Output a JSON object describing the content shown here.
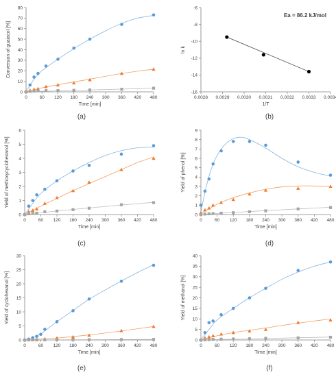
{
  "colors": {
    "blue": "#5B9BD5",
    "orange": "#ED7D31",
    "gray": "#A5A5A5",
    "black": "#000000"
  },
  "chart_data": [
    {
      "id": "a",
      "type": "scatter",
      "panel_label": "(a)",
      "xlabel": "Time [min]",
      "ylabel": "Conversion of guaiacol [%]",
      "xlim": [
        0,
        480
      ],
      "ylim": [
        0,
        80
      ],
      "xticks": [
        0,
        60,
        120,
        180,
        240,
        300,
        360,
        420,
        480
      ],
      "yticks": [
        0,
        10,
        20,
        30,
        40,
        50,
        60,
        70,
        80
      ],
      "ytick_decimals": 0,
      "xtick_decimals": 0,
      "grid": false,
      "series": [
        {
          "color": "blue",
          "marker": "circle",
          "x": [
            0,
            15,
            30,
            45,
            75,
            120,
            180,
            240,
            360,
            480
          ],
          "y": [
            0,
            6.5,
            14,
            17.5,
            24.5,
            31,
            41.5,
            50,
            64,
            73
          ],
          "trend": [
            [
              0,
              0
            ],
            [
              30,
              12
            ],
            [
              60,
              20
            ],
            [
              120,
              31
            ],
            [
              180,
              41
            ],
            [
              240,
              50
            ],
            [
              300,
              58
            ],
            [
              360,
              65
            ],
            [
              420,
              70
            ],
            [
              480,
              72.5
            ]
          ]
        },
        {
          "color": "orange",
          "marker": "triangle",
          "x": [
            0,
            15,
            30,
            45,
            75,
            120,
            180,
            240,
            360,
            480
          ],
          "y": [
            0,
            1.5,
            2.5,
            3,
            5,
            6.5,
            8.5,
            11.5,
            17.5,
            21.5
          ],
          "trend": [
            [
              0,
              0
            ],
            [
              60,
              3.8
            ],
            [
              120,
              6.8
            ],
            [
              180,
              9.4
            ],
            [
              240,
              12
            ],
            [
              300,
              14.8
            ],
            [
              360,
              17.4
            ],
            [
              420,
              19.6
            ],
            [
              480,
              21.5
            ]
          ]
        },
        {
          "color": "gray",
          "marker": "square",
          "x": [
            0,
            15,
            30,
            45,
            75,
            120,
            180,
            240,
            360,
            480
          ],
          "y": [
            0,
            0.5,
            0.8,
            1,
            1.2,
            1.2,
            1.5,
            1.8,
            2.5,
            3.5
          ],
          "trend": [
            [
              0,
              0
            ],
            [
              120,
              1
            ],
            [
              240,
              1.8
            ],
            [
              360,
              2.6
            ],
            [
              480,
              3.5
            ]
          ]
        }
      ]
    },
    {
      "id": "b",
      "type": "scatter",
      "panel_label": "(b)",
      "xlabel": "1/T",
      "ylabel": "ln k",
      "annotation": "Ea = 86.2 kJ/mol",
      "xlim": [
        0.0028,
        0.0034
      ],
      "ylim": [
        -16,
        -6
      ],
      "xticks": [
        0.0028,
        0.0029,
        0.003,
        0.0031,
        0.0032,
        0.0033,
        0.0034
      ],
      "yticks": [
        -16,
        -14,
        -12,
        -10,
        -8,
        -6
      ],
      "ytick_decimals": 0,
      "xtick_decimals": 4,
      "grid": false,
      "series": [
        {
          "color": "black",
          "marker": "circle",
          "x": [
            0.00292,
            0.00309,
            0.0033
          ],
          "y": [
            -9.5,
            -11.6,
            -13.6
          ],
          "trend": [
            [
              0.00292,
              -9.5
            ],
            [
              0.0033,
              -13.6
            ]
          ]
        }
      ]
    },
    {
      "id": "c",
      "type": "scatter",
      "panel_label": "(c)",
      "xlabel": "Time [min]",
      "ylabel": "Yield of methoxycyclohexanol [%]",
      "xlim": [
        0,
        480
      ],
      "ylim": [
        0,
        6
      ],
      "xticks": [
        0,
        60,
        120,
        180,
        240,
        300,
        360,
        420,
        480
      ],
      "yticks": [
        0,
        1,
        2,
        3,
        4,
        5,
        6
      ],
      "ytick_decimals": 0,
      "xtick_decimals": 0,
      "grid": false,
      "series": [
        {
          "color": "blue",
          "marker": "circle",
          "x": [
            0,
            15,
            30,
            45,
            75,
            120,
            180,
            240,
            360,
            480
          ],
          "y": [
            0,
            0.6,
            1,
            1.4,
            1.8,
            2.4,
            3.1,
            3.5,
            4.3,
            4.9
          ],
          "trend": [
            [
              0,
              0
            ],
            [
              30,
              0.8
            ],
            [
              60,
              1.5
            ],
            [
              120,
              2.4
            ],
            [
              180,
              3.1
            ],
            [
              240,
              3.7
            ],
            [
              300,
              4.2
            ],
            [
              360,
              4.55
            ],
            [
              420,
              4.75
            ],
            [
              480,
              4.8
            ]
          ]
        },
        {
          "color": "orange",
          "marker": "triangle",
          "x": [
            0,
            15,
            30,
            45,
            75,
            120,
            180,
            240,
            360,
            480
          ],
          "y": [
            0,
            0.2,
            0.3,
            0.4,
            0.8,
            1.2,
            1.7,
            2.3,
            3.2,
            4.0
          ],
          "trend": [
            [
              0,
              0
            ],
            [
              60,
              0.6
            ],
            [
              120,
              1.15
            ],
            [
              180,
              1.7
            ],
            [
              240,
              2.2
            ],
            [
              300,
              2.7
            ],
            [
              360,
              3.2
            ],
            [
              420,
              3.7
            ],
            [
              480,
              4.1
            ]
          ]
        },
        {
          "color": "gray",
          "marker": "square",
          "x": [
            0,
            15,
            30,
            45,
            75,
            120,
            180,
            240,
            360,
            480
          ],
          "y": [
            0,
            0.05,
            0.08,
            0.1,
            0.2,
            0.25,
            0.35,
            0.45,
            0.7,
            0.85
          ],
          "trend": [
            [
              0,
              0
            ],
            [
              120,
              0.25
            ],
            [
              240,
              0.47
            ],
            [
              360,
              0.68
            ],
            [
              480,
              0.87
            ]
          ]
        }
      ]
    },
    {
      "id": "d",
      "type": "scatter",
      "panel_label": "(d)",
      "xlabel": "Time [min]",
      "ylabel": "Yield of phenol [%]",
      "xlim": [
        0,
        480
      ],
      "ylim": [
        0,
        9
      ],
      "xticks": [
        0,
        60,
        120,
        180,
        240,
        300,
        360,
        420,
        480
      ],
      "yticks": [
        0,
        1,
        2,
        3,
        4,
        5,
        6,
        7,
        8,
        9
      ],
      "ytick_decimals": 0,
      "xtick_decimals": 0,
      "grid": false,
      "series": [
        {
          "color": "blue",
          "marker": "circle",
          "x": [
            0,
            15,
            30,
            45,
            75,
            120,
            180,
            240,
            360,
            480
          ],
          "y": [
            1,
            2.5,
            3.8,
            5.4,
            6.8,
            7.8,
            7.8,
            7.4,
            5.6,
            4.2
          ],
          "trend": [
            [
              0,
              0.3
            ],
            [
              20,
              3
            ],
            [
              40,
              5
            ],
            [
              60,
              6.3
            ],
            [
              90,
              7.5
            ],
            [
              120,
              8.1
            ],
            [
              150,
              8.25
            ],
            [
              180,
              8
            ],
            [
              240,
              7.1
            ],
            [
              300,
              6
            ],
            [
              360,
              5.1
            ],
            [
              420,
              4.5
            ],
            [
              480,
              4.1
            ]
          ]
        },
        {
          "color": "orange",
          "marker": "triangle",
          "x": [
            0,
            15,
            30,
            45,
            75,
            120,
            180,
            240,
            360,
            480
          ],
          "y": [
            0.2,
            0.5,
            0.7,
            1,
            1.3,
            1.6,
            2.2,
            2.6,
            2.8,
            3.0
          ],
          "trend": [
            [
              0,
              0.1
            ],
            [
              60,
              1.1
            ],
            [
              120,
              1.8
            ],
            [
              180,
              2.3
            ],
            [
              240,
              2.7
            ],
            [
              300,
              2.95
            ],
            [
              360,
              3.05
            ],
            [
              420,
              3.05
            ],
            [
              480,
              2.95
            ]
          ]
        },
        {
          "color": "gray",
          "marker": "square",
          "x": [
            0,
            15,
            30,
            45,
            75,
            120,
            180,
            240,
            360,
            480
          ],
          "y": [
            0,
            0.05,
            0.08,
            0.1,
            0.15,
            0.2,
            0.3,
            0.4,
            0.6,
            0.75
          ],
          "trend": [
            [
              0,
              0
            ],
            [
              120,
              0.22
            ],
            [
              240,
              0.42
            ],
            [
              360,
              0.6
            ],
            [
              480,
              0.78
            ]
          ]
        }
      ]
    },
    {
      "id": "e",
      "type": "scatter",
      "panel_label": "(e)",
      "xlabel": "Time [min]",
      "ylabel": "Yield of cyclohexanol [%]",
      "xlim": [
        0,
        480
      ],
      "ylim": [
        0,
        30
      ],
      "xticks": [
        0,
        60,
        120,
        180,
        240,
        300,
        360,
        420,
        480
      ],
      "yticks": [
        0,
        5,
        10,
        15,
        20,
        25,
        30
      ],
      "ytick_decimals": 0,
      "xtick_decimals": 0,
      "grid": false,
      "series": [
        {
          "color": "blue",
          "marker": "circle",
          "x": [
            0,
            15,
            30,
            45,
            60,
            75,
            120,
            180,
            240,
            360,
            480
          ],
          "y": [
            0,
            0.3,
            0.8,
            1.3,
            2,
            3.8,
            6.5,
            10.4,
            14.6,
            20.9,
            26.6
          ],
          "trend": [
            [
              0,
              0
            ],
            [
              30,
              0.8
            ],
            [
              60,
              2.2
            ],
            [
              120,
              6.5
            ],
            [
              180,
              10.5
            ],
            [
              240,
              14.5
            ],
            [
              300,
              17.8
            ],
            [
              360,
              21
            ],
            [
              420,
              24
            ],
            [
              480,
              26.8
            ]
          ]
        },
        {
          "color": "orange",
          "marker": "triangle",
          "x": [
            0,
            15,
            30,
            45,
            75,
            120,
            180,
            240,
            360,
            480
          ],
          "y": [
            0,
            0.05,
            0.1,
            0.2,
            0.4,
            0.7,
            1.1,
            1.7,
            3.3,
            4.8
          ],
          "trend": [
            [
              0,
              0
            ],
            [
              120,
              0.7
            ],
            [
              240,
              1.8
            ],
            [
              360,
              3.2
            ],
            [
              480,
              4.8
            ]
          ]
        },
        {
          "color": "gray",
          "marker": "square",
          "x": [
            0,
            15,
            30,
            45,
            75,
            120,
            180,
            240,
            360,
            480
          ],
          "y": [
            0,
            0.02,
            0.03,
            0.05,
            0.05,
            0.08,
            0.1,
            0.12,
            0.15,
            0.2
          ],
          "trend": [
            [
              0,
              0
            ],
            [
              240,
              0.1
            ],
            [
              480,
              0.2
            ]
          ]
        }
      ]
    },
    {
      "id": "f",
      "type": "scatter",
      "panel_label": "(f)",
      "xlabel": "Time [min]",
      "ylabel": "Yield of methanol [%]",
      "xlim": [
        0,
        480
      ],
      "ylim": [
        0,
        40
      ],
      "xticks": [
        0,
        60,
        120,
        180,
        240,
        300,
        360,
        420,
        480
      ],
      "yticks": [
        0,
        5,
        10,
        15,
        20,
        25,
        30,
        35,
        40
      ],
      "ytick_decimals": 0,
      "xtick_decimals": 0,
      "grid": false,
      "series": [
        {
          "color": "blue",
          "marker": "circle",
          "x": [
            0,
            15,
            30,
            45,
            75,
            120,
            180,
            240,
            360,
            480
          ],
          "y": [
            0,
            3.5,
            8.2,
            9,
            12,
            15,
            20,
            24.5,
            33,
            37
          ],
          "trend": [
            [
              0,
              0
            ],
            [
              30,
              5
            ],
            [
              60,
              9.5
            ],
            [
              120,
              15
            ],
            [
              180,
              20
            ],
            [
              240,
              24.5
            ],
            [
              300,
              28.8
            ],
            [
              360,
              32.2
            ],
            [
              420,
              35
            ],
            [
              480,
              37
            ]
          ]
        },
        {
          "color": "orange",
          "marker": "triangle",
          "x": [
            0,
            15,
            30,
            45,
            75,
            120,
            180,
            240,
            360,
            480
          ],
          "y": [
            0,
            1,
            1.5,
            2,
            2.8,
            3.5,
            4.3,
            5,
            8.3,
            9.5
          ],
          "trend": [
            [
              0,
              0
            ],
            [
              60,
              2
            ],
            [
              120,
              3.5
            ],
            [
              180,
              4.6
            ],
            [
              240,
              5.7
            ],
            [
              300,
              6.9
            ],
            [
              360,
              8
            ],
            [
              420,
              9
            ],
            [
              480,
              10
            ]
          ]
        },
        {
          "color": "gray",
          "marker": "square",
          "x": [
            0,
            15,
            30,
            45,
            75,
            120,
            180,
            240,
            360,
            480
          ],
          "y": [
            0,
            0.1,
            0.2,
            0.3,
            0.4,
            0.5,
            0.6,
            0.8,
            1,
            1.3
          ],
          "trend": [
            [
              0,
              0
            ],
            [
              240,
              0.7
            ],
            [
              480,
              1.4
            ]
          ]
        }
      ]
    }
  ]
}
